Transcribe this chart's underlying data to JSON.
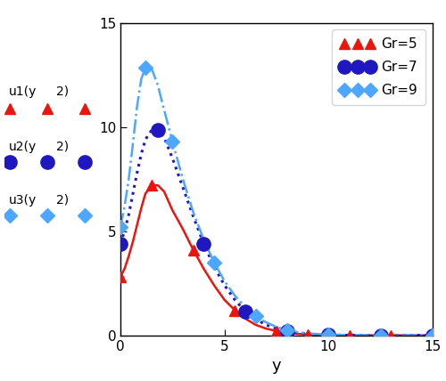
{
  "xlabel": "y",
  "xlim": [
    0,
    15
  ],
  "ylim": [
    0,
    15
  ],
  "yticks": [
    0,
    5,
    10,
    15
  ],
  "xticks": [
    0,
    5,
    10,
    15
  ],
  "legend_labels": [
    "Gr=5",
    "Gr=7",
    "Gr=9"
  ],
  "curve_Gr5": {
    "x": [
      0.0,
      0.2,
      0.4,
      0.6,
      0.8,
      1.0,
      1.2,
      1.5,
      1.8,
      2.1,
      2.5,
      3.0,
      3.5,
      4.0,
      4.5,
      5.0,
      5.5,
      6.0,
      6.5,
      7.0,
      7.5,
      8.0,
      8.5,
      9.0,
      10.0,
      11.0,
      12.0,
      13.0,
      14.0,
      15.0
    ],
    "y": [
      2.8,
      3.2,
      3.8,
      4.5,
      5.3,
      6.1,
      6.8,
      7.2,
      7.2,
      6.9,
      6.0,
      5.1,
      4.1,
      3.2,
      2.4,
      1.7,
      1.2,
      0.8,
      0.5,
      0.32,
      0.2,
      0.12,
      0.07,
      0.04,
      0.01,
      0.0,
      0.0,
      0.0,
      0.0,
      0.0
    ],
    "color": "#e8160e",
    "linestyle": "-",
    "linewidth": 1.8,
    "marker": "^",
    "markersize": 9,
    "marker_x": [
      0.0,
      1.5,
      3.5,
      5.5,
      7.5,
      9.0,
      11.0,
      13.0,
      15.0
    ],
    "marker_y": [
      2.8,
      7.2,
      4.1,
      1.2,
      0.2,
      0.04,
      0.0,
      0.0,
      0.0
    ]
  },
  "curve_Gr7": {
    "x": [
      0.0,
      0.2,
      0.4,
      0.6,
      0.8,
      1.0,
      1.2,
      1.5,
      1.8,
      2.1,
      2.5,
      3.0,
      3.5,
      4.0,
      4.5,
      5.0,
      5.5,
      6.0,
      6.5,
      7.0,
      7.5,
      8.0,
      8.5,
      9.0,
      10.0,
      11.0,
      12.0,
      13.0,
      14.0,
      15.0
    ],
    "y": [
      4.4,
      5.0,
      5.8,
      6.8,
      7.8,
      8.7,
      9.4,
      9.85,
      9.85,
      9.5,
      8.5,
      7.1,
      5.7,
      4.4,
      3.3,
      2.4,
      1.7,
      1.15,
      0.77,
      0.5,
      0.32,
      0.2,
      0.12,
      0.07,
      0.02,
      0.005,
      0.0,
      0.0,
      0.0,
      0.0
    ],
    "color": "#1f18c0",
    "linestyle": ":",
    "linewidth": 2.2,
    "marker": "o",
    "markersize": 11,
    "marker_x": [
      0.0,
      1.8,
      4.0,
      6.0,
      8.0,
      10.0,
      12.5,
      15.0
    ],
    "marker_y": [
      4.4,
      9.85,
      4.4,
      1.15,
      0.2,
      0.02,
      0.0,
      0.0
    ]
  },
  "curve_Gr9": {
    "x": [
      0.0,
      0.2,
      0.4,
      0.6,
      0.8,
      1.0,
      1.2,
      1.5,
      1.8,
      2.0,
      2.5,
      3.0,
      3.5,
      4.0,
      4.5,
      5.0,
      5.5,
      6.0,
      6.5,
      7.0,
      7.5,
      8.0,
      8.5,
      9.0,
      10.0,
      11.0,
      12.0,
      13.0,
      14.0,
      15.0
    ],
    "y": [
      5.2,
      6.2,
      7.5,
      9.2,
      11.0,
      12.3,
      12.85,
      12.8,
      12.0,
      11.2,
      9.3,
      7.5,
      5.9,
      4.6,
      3.5,
      2.6,
      1.9,
      1.35,
      0.92,
      0.62,
      0.4,
      0.25,
      0.15,
      0.09,
      0.03,
      0.01,
      0.003,
      0.0,
      0.0,
      0.0
    ],
    "color": "#4da6ff",
    "linestyle": "-.",
    "linewidth": 1.8,
    "marker": "D",
    "markersize": 8,
    "marker_x": [
      0.0,
      1.2,
      2.5,
      4.5,
      6.5,
      8.0,
      10.0,
      12.5,
      15.0
    ],
    "marker_y": [
      5.2,
      12.85,
      9.3,
      3.5,
      0.92,
      0.25,
      0.03,
      0.003,
      0.0
    ]
  },
  "left_label1": "u1(y",
  "left_label1b": "2)",
  "left_label2": "u2(y",
  "left_label2b": "2)",
  "left_label3": "u3(y",
  "left_label3b": "2)",
  "color_gr5": "#e8160e",
  "color_gr7": "#1f18c0",
  "color_gr9": "#4da6ff"
}
